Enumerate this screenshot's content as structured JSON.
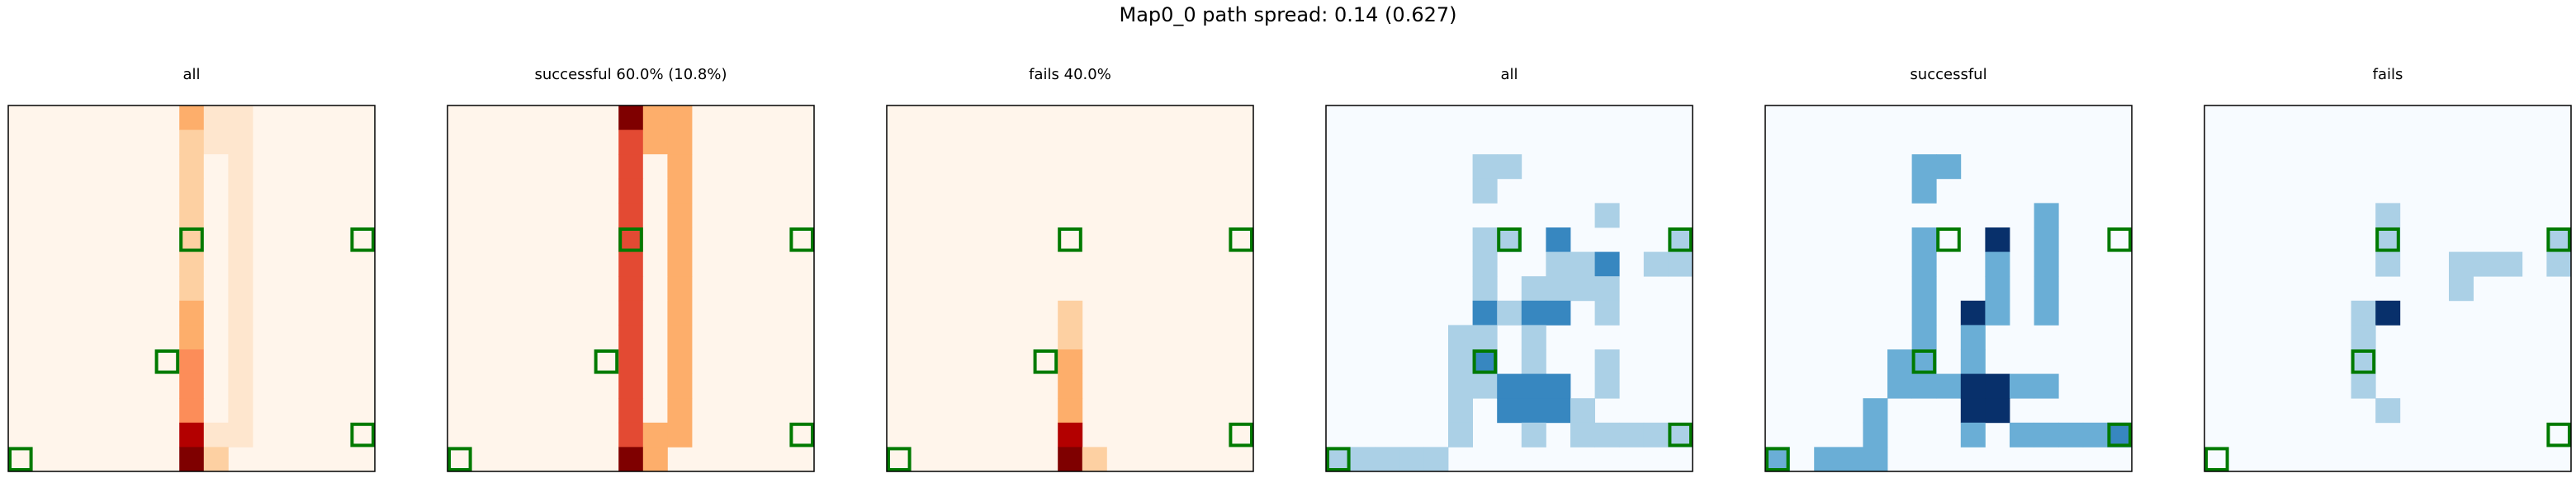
{
  "suptitle": "Map0_0 path spread: 0.14 (0.627)",
  "colors": {
    "reds": [
      "#fff5eb",
      "#fee6ce",
      "#fdd0a2",
      "#fdae6b",
      "#fc8d59",
      "#e34a33",
      "#b30000",
      "#7f0000"
    ],
    "blues": [
      "#f7fbff",
      "#abd0e6",
      "#6aaed6",
      "#3787c0",
      "#08306b"
    ],
    "marker": "#007a00"
  },
  "chart_data": [
    {
      "type": "heatmap",
      "title": "all",
      "cmap": "reds",
      "grid_size": 15,
      "markers": [
        [
          7,
          5
        ],
        [
          14,
          5
        ],
        [
          6,
          10
        ],
        [
          0,
          14
        ],
        [
          14,
          13
        ]
      ],
      "cells": [
        [
          7,
          0,
          3
        ],
        [
          8,
          0,
          1
        ],
        [
          9,
          0,
          1
        ],
        [
          7,
          1,
          2
        ],
        [
          8,
          1,
          1
        ],
        [
          9,
          1,
          1
        ],
        [
          7,
          2,
          2
        ],
        [
          8,
          2,
          0
        ],
        [
          9,
          2,
          1
        ],
        [
          7,
          3,
          2
        ],
        [
          8,
          3,
          0
        ],
        [
          9,
          3,
          1
        ],
        [
          7,
          4,
          2
        ],
        [
          8,
          4,
          0
        ],
        [
          9,
          4,
          1
        ],
        [
          7,
          5,
          2
        ],
        [
          8,
          5,
          0
        ],
        [
          9,
          5,
          1
        ],
        [
          7,
          6,
          2
        ],
        [
          8,
          6,
          0
        ],
        [
          9,
          6,
          1
        ],
        [
          7,
          7,
          2
        ],
        [
          8,
          7,
          0
        ],
        [
          9,
          7,
          1
        ],
        [
          7,
          8,
          3
        ],
        [
          8,
          8,
          0
        ],
        [
          9,
          8,
          1
        ],
        [
          7,
          9,
          3
        ],
        [
          8,
          9,
          0
        ],
        [
          9,
          9,
          1
        ],
        [
          7,
          10,
          4
        ],
        [
          8,
          10,
          0
        ],
        [
          9,
          10,
          1
        ],
        [
          7,
          11,
          4
        ],
        [
          8,
          11,
          0
        ],
        [
          9,
          11,
          1
        ],
        [
          7,
          12,
          4
        ],
        [
          8,
          12,
          0
        ],
        [
          9,
          12,
          1
        ],
        [
          7,
          13,
          6
        ],
        [
          8,
          13,
          1
        ],
        [
          9,
          13,
          1
        ],
        [
          7,
          14,
          7
        ],
        [
          8,
          14,
          2
        ]
      ]
    },
    {
      "type": "heatmap",
      "title": "successful 60.0% (10.8%)",
      "cmap": "reds",
      "grid_size": 15,
      "markers": [
        [
          7,
          5
        ],
        [
          14,
          5
        ],
        [
          6,
          10
        ],
        [
          0,
          14
        ],
        [
          14,
          13
        ]
      ],
      "cells": [
        [
          7,
          0,
          7
        ],
        [
          8,
          0,
          3
        ],
        [
          9,
          0,
          3
        ],
        [
          7,
          1,
          5
        ],
        [
          8,
          1,
          3
        ],
        [
          9,
          1,
          3
        ],
        [
          7,
          2,
          5
        ],
        [
          8,
          2,
          0
        ],
        [
          9,
          2,
          3
        ],
        [
          7,
          3,
          5
        ],
        [
          8,
          3,
          0
        ],
        [
          9,
          3,
          3
        ],
        [
          7,
          4,
          5
        ],
        [
          8,
          4,
          0
        ],
        [
          9,
          4,
          3
        ],
        [
          7,
          5,
          5
        ],
        [
          8,
          5,
          0
        ],
        [
          9,
          5,
          3
        ],
        [
          7,
          6,
          5
        ],
        [
          8,
          6,
          0
        ],
        [
          9,
          6,
          3
        ],
        [
          7,
          7,
          5
        ],
        [
          8,
          7,
          0
        ],
        [
          9,
          7,
          3
        ],
        [
          7,
          8,
          5
        ],
        [
          8,
          8,
          0
        ],
        [
          9,
          8,
          3
        ],
        [
          7,
          9,
          5
        ],
        [
          8,
          9,
          0
        ],
        [
          9,
          9,
          3
        ],
        [
          7,
          10,
          5
        ],
        [
          8,
          10,
          0
        ],
        [
          9,
          10,
          3
        ],
        [
          7,
          11,
          5
        ],
        [
          8,
          11,
          0
        ],
        [
          9,
          11,
          3
        ],
        [
          7,
          12,
          5
        ],
        [
          8,
          12,
          0
        ],
        [
          9,
          12,
          3
        ],
        [
          7,
          13,
          5
        ],
        [
          8,
          13,
          3
        ],
        [
          9,
          13,
          3
        ],
        [
          7,
          14,
          7
        ],
        [
          8,
          14,
          3
        ]
      ]
    },
    {
      "type": "heatmap",
      "title": "fails 40.0%",
      "cmap": "reds",
      "grid_size": 15,
      "markers": [
        [
          7,
          5
        ],
        [
          14,
          5
        ],
        [
          6,
          10
        ],
        [
          0,
          14
        ],
        [
          14,
          13
        ]
      ],
      "cells": [
        [
          7,
          8,
          2
        ],
        [
          7,
          9,
          2
        ],
        [
          7,
          10,
          3
        ],
        [
          7,
          11,
          3
        ],
        [
          7,
          12,
          3
        ],
        [
          7,
          13,
          6
        ],
        [
          7,
          14,
          7
        ],
        [
          8,
          14,
          2
        ]
      ]
    },
    {
      "type": "heatmap",
      "title": "all",
      "cmap": "blues",
      "grid_size": 15,
      "markers": [
        [
          7,
          5
        ],
        [
          14,
          5
        ],
        [
          6,
          10
        ],
        [
          0,
          14
        ],
        [
          14,
          13
        ]
      ],
      "cells": [
        [
          6,
          2,
          1
        ],
        [
          7,
          2,
          1
        ],
        [
          6,
          3,
          1
        ],
        [
          11,
          4,
          1
        ],
        [
          6,
          5,
          1
        ],
        [
          7,
          5,
          1
        ],
        [
          9,
          5,
          3
        ],
        [
          14,
          5,
          1
        ],
        [
          6,
          6,
          1
        ],
        [
          9,
          6,
          1
        ],
        [
          10,
          6,
          1
        ],
        [
          11,
          6,
          3
        ],
        [
          13,
          6,
          1
        ],
        [
          14,
          6,
          1
        ],
        [
          6,
          7,
          1
        ],
        [
          8,
          7,
          1
        ],
        [
          9,
          7,
          1
        ],
        [
          10,
          7,
          1
        ],
        [
          11,
          7,
          1
        ],
        [
          6,
          8,
          3
        ],
        [
          7,
          8,
          1
        ],
        [
          8,
          8,
          3
        ],
        [
          9,
          8,
          3
        ],
        [
          11,
          8,
          1
        ],
        [
          5,
          9,
          1
        ],
        [
          6,
          9,
          1
        ],
        [
          8,
          9,
          1
        ],
        [
          5,
          10,
          1
        ],
        [
          6,
          10,
          3
        ],
        [
          8,
          10,
          1
        ],
        [
          11,
          10,
          1
        ],
        [
          5,
          11,
          1
        ],
        [
          6,
          11,
          1
        ],
        [
          7,
          11,
          3
        ],
        [
          8,
          11,
          3
        ],
        [
          9,
          11,
          3
        ],
        [
          11,
          11,
          1
        ],
        [
          5,
          12,
          1
        ],
        [
          7,
          12,
          3
        ],
        [
          8,
          12,
          3
        ],
        [
          9,
          12,
          3
        ],
        [
          10,
          12,
          1
        ],
        [
          5,
          13,
          1
        ],
        [
          8,
          13,
          1
        ],
        [
          10,
          13,
          1
        ],
        [
          11,
          13,
          1
        ],
        [
          12,
          13,
          1
        ],
        [
          13,
          13,
          1
        ],
        [
          14,
          13,
          1
        ],
        [
          0,
          14,
          1
        ],
        [
          1,
          14,
          1
        ],
        [
          2,
          14,
          1
        ],
        [
          3,
          14,
          1
        ],
        [
          4,
          14,
          1
        ]
      ]
    },
    {
      "type": "heatmap",
      "title": "successful",
      "cmap": "blues",
      "grid_size": 15,
      "markers": [
        [
          7,
          5
        ],
        [
          14,
          5
        ],
        [
          6,
          10
        ],
        [
          0,
          14
        ],
        [
          14,
          13
        ]
      ],
      "cells": [
        [
          6,
          2,
          2
        ],
        [
          7,
          2,
          2
        ],
        [
          6,
          3,
          2
        ],
        [
          11,
          4,
          2
        ],
        [
          6,
          5,
          2
        ],
        [
          9,
          5,
          4
        ],
        [
          11,
          5,
          2
        ],
        [
          6,
          6,
          2
        ],
        [
          9,
          6,
          2
        ],
        [
          11,
          6,
          2
        ],
        [
          6,
          7,
          2
        ],
        [
          9,
          7,
          2
        ],
        [
          11,
          7,
          2
        ],
        [
          6,
          8,
          2
        ],
        [
          8,
          8,
          4
        ],
        [
          9,
          8,
          2
        ],
        [
          11,
          8,
          2
        ],
        [
          6,
          9,
          2
        ],
        [
          8,
          9,
          2
        ],
        [
          5,
          10,
          2
        ],
        [
          6,
          10,
          2
        ],
        [
          8,
          10,
          2
        ],
        [
          5,
          11,
          2
        ],
        [
          6,
          11,
          2
        ],
        [
          7,
          11,
          2
        ],
        [
          8,
          11,
          4
        ],
        [
          9,
          11,
          4
        ],
        [
          10,
          11,
          2
        ],
        [
          11,
          11,
          2
        ],
        [
          4,
          12,
          2
        ],
        [
          8,
          12,
          4
        ],
        [
          9,
          12,
          4
        ],
        [
          4,
          13,
          2
        ],
        [
          8,
          13,
          2
        ],
        [
          10,
          13,
          2
        ],
        [
          11,
          13,
          2
        ],
        [
          12,
          13,
          2
        ],
        [
          13,
          13,
          2
        ],
        [
          14,
          13,
          3
        ],
        [
          0,
          14,
          2
        ],
        [
          2,
          14,
          2
        ],
        [
          3,
          14,
          2
        ],
        [
          4,
          14,
          2
        ]
      ]
    },
    {
      "type": "heatmap",
      "title": "fails",
      "cmap": "blues",
      "grid_size": 15,
      "markers": [
        [
          7,
          5
        ],
        [
          14,
          5
        ],
        [
          6,
          10
        ],
        [
          0,
          14
        ],
        [
          14,
          13
        ]
      ],
      "cells": [
        [
          7,
          4,
          1
        ],
        [
          7,
          5,
          1
        ],
        [
          14,
          5,
          1
        ],
        [
          7,
          6,
          1
        ],
        [
          10,
          6,
          1
        ],
        [
          11,
          6,
          1
        ],
        [
          12,
          6,
          1
        ],
        [
          14,
          6,
          1
        ],
        [
          10,
          7,
          1
        ],
        [
          6,
          8,
          1
        ],
        [
          7,
          8,
          4
        ],
        [
          6,
          9,
          1
        ],
        [
          6,
          10,
          1
        ],
        [
          6,
          11,
          1
        ],
        [
          7,
          12,
          1
        ]
      ]
    }
  ]
}
